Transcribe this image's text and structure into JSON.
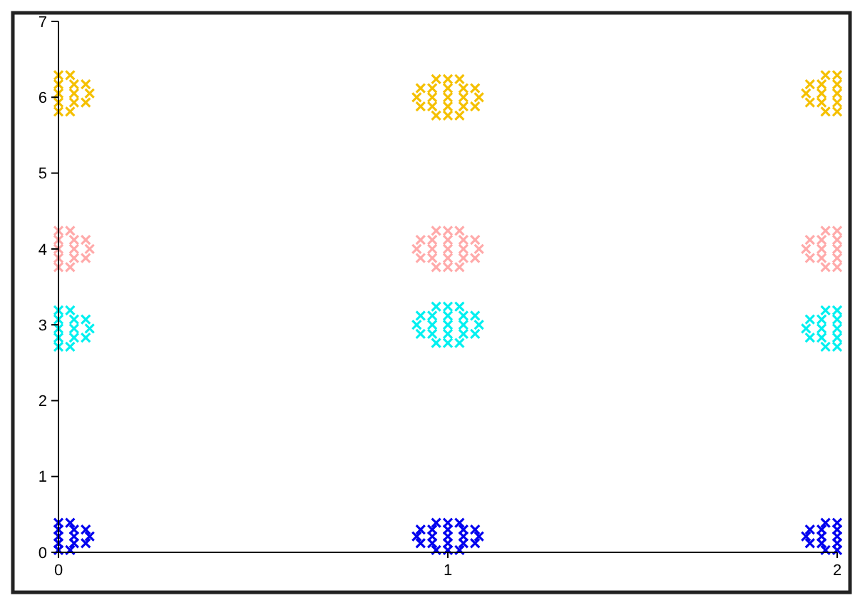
{
  "chart_data": {
    "type": "scatter",
    "marker": "cross",
    "grid": false,
    "xlim": [
      0,
      2
    ],
    "xticks": [
      0,
      1,
      2
    ],
    "ylim": [
      0,
      7
    ],
    "yticks": [
      0,
      1,
      2,
      3,
      4,
      5,
      6,
      7
    ],
    "x": [
      0,
      0.04,
      0.08,
      0,
      0.04,
      0.07,
      0,
      0.04,
      0.07,
      0,
      0.03,
      0,
      0.03,
      1,
      0.96,
      1.04,
      0.92,
      1.08,
      1,
      0.96,
      1.04,
      0.93,
      1.07,
      1,
      0.96,
      1.04,
      0.93,
      1.07,
      1,
      0.97,
      1.03,
      1,
      0.97,
      1.03,
      2,
      1.96,
      1.92,
      2,
      1.96,
      1.93,
      2,
      1.96,
      1.93,
      2,
      1.97,
      2,
      1.97
    ],
    "series": [
      {
        "color": "#0000ee",
        "values": [
          0.21,
          0.21,
          0.21,
          0.3,
          0.3,
          0.3,
          0.12,
          0.12,
          0.12,
          0.39,
          0.39,
          0.03,
          0.03,
          0.21,
          0.21,
          0.21,
          0.21,
          0.21,
          0.3,
          0.3,
          0.3,
          0.3,
          0.3,
          0.12,
          0.12,
          0.12,
          0.12,
          0.12,
          0.39,
          0.39,
          0.39,
          0.03,
          0.03,
          0.03,
          0.21,
          0.21,
          0.21,
          0.3,
          0.3,
          0.3,
          0.12,
          0.12,
          0.12,
          0.39,
          0.39,
          0.03,
          0.03
        ]
      },
      {
        "color": "#00f0f0",
        "values": [
          2.95,
          2.95,
          2.95,
          3.07,
          3.07,
          3.07,
          2.83,
          2.83,
          2.83,
          3.19,
          3.19,
          2.71,
          2.71,
          3,
          3,
          3,
          3,
          3,
          3.12,
          3.12,
          3.12,
          3.12,
          3.12,
          2.88,
          2.88,
          2.88,
          2.88,
          2.88,
          3.24,
          3.24,
          3.24,
          2.76,
          2.76,
          2.76,
          2.95,
          2.95,
          2.95,
          3.07,
          3.07,
          3.07,
          2.83,
          2.83,
          2.83,
          3.19,
          3.19,
          2.71,
          2.71
        ]
      },
      {
        "color": "#ffaaaa",
        "values": [
          4,
          4,
          4,
          4.12,
          4.12,
          4.12,
          3.88,
          3.88,
          3.88,
          4.24,
          4.24,
          3.76,
          3.76,
          4,
          4,
          4,
          4,
          4,
          4.12,
          4.12,
          4.12,
          4.12,
          4.12,
          3.88,
          3.88,
          3.88,
          3.88,
          3.88,
          4.24,
          4.24,
          4.24,
          3.76,
          3.76,
          3.76,
          4,
          4,
          4,
          4.12,
          4.12,
          4.12,
          3.88,
          3.88,
          3.88,
          4.24,
          4.24,
          3.76,
          3.76
        ]
      },
      {
        "color": "#f5c000",
        "values": [
          6.05,
          6.05,
          6.05,
          6.17,
          6.17,
          6.17,
          5.93,
          5.93,
          5.93,
          6.29,
          6.29,
          5.81,
          5.81,
          6,
          6,
          6,
          6,
          6,
          6.12,
          6.12,
          6.12,
          6.12,
          6.12,
          5.88,
          5.88,
          5.88,
          5.88,
          5.88,
          6.24,
          6.24,
          6.24,
          5.76,
          5.76,
          5.76,
          6.05,
          6.05,
          6.05,
          6.17,
          6.17,
          6.17,
          5.93,
          5.93,
          5.93,
          6.29,
          6.29,
          5.81,
          5.81
        ]
      }
    ]
  }
}
